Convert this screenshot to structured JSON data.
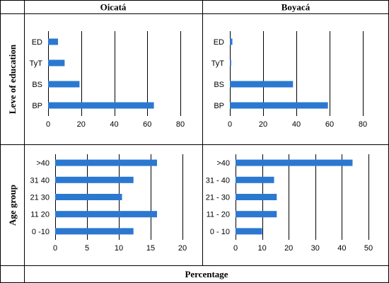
{
  "header": {
    "left_col_title": "Oicatá",
    "right_col_title": "Boyacá"
  },
  "row_labels": {
    "education": "Leve of education",
    "age": "Age group"
  },
  "footer": {
    "xlabel": "Percentage"
  },
  "colors": {
    "bar": "#2b78d0",
    "grid": "#000000",
    "border": "#000000",
    "text": "#000000"
  },
  "chart_data": [
    {
      "id": "oicata-education",
      "type": "bar",
      "orientation": "horizontal",
      "title": "",
      "categories": [
        "ED",
        "TyT",
        "BS",
        "BP"
      ],
      "values": [
        6,
        10,
        19,
        64
      ],
      "xlim": [
        0,
        80
      ],
      "xticks": [
        0,
        20,
        40,
        60,
        80
      ],
      "grid": "vertical"
    },
    {
      "id": "boyaca-education",
      "type": "bar",
      "orientation": "horizontal",
      "title": "",
      "categories": [
        "ED",
        "TyT",
        "BS",
        "BP"
      ],
      "values": [
        1.5,
        0.8,
        38,
        59
      ],
      "xlim": [
        0,
        80
      ],
      "xticks": [
        0,
        20,
        40,
        60,
        80
      ],
      "grid": "vertical"
    },
    {
      "id": "oicata-age",
      "type": "bar",
      "orientation": "horizontal",
      "title": "",
      "categories": [
        ">40",
        "31 40",
        "21 30",
        "11 20",
        "0 -10"
      ],
      "values": [
        16,
        12.3,
        10.5,
        16,
        12.3
      ],
      "xlim": [
        0,
        20
      ],
      "xticks": [
        0,
        5,
        10,
        15,
        20
      ],
      "grid": "vertical"
    },
    {
      "id": "boyaca-age",
      "type": "bar",
      "orientation": "horizontal",
      "title": "",
      "categories": [
        ">40",
        "31 - 40",
        "21 - 30",
        "11 - 20",
        "0 - 10"
      ],
      "values": [
        44,
        14.5,
        15.5,
        15.5,
        10
      ],
      "xlim": [
        0,
        50
      ],
      "xticks": [
        0,
        10,
        20,
        30,
        40,
        50
      ],
      "grid": "vertical"
    }
  ]
}
